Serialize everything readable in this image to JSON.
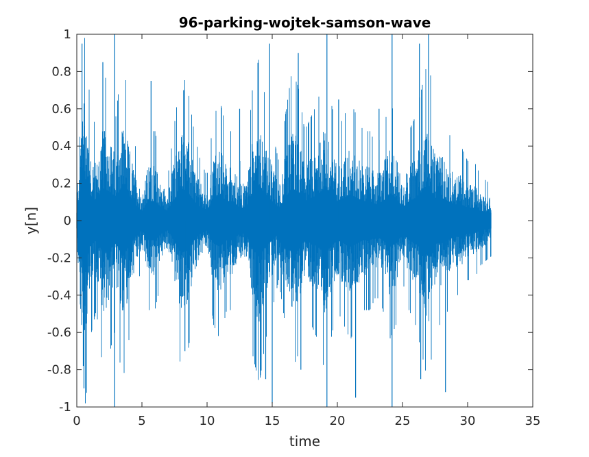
{
  "chart_data": {
    "type": "line",
    "title": "96-parking-wojtek-samson-wave",
    "xlabel": "time",
    "ylabel": "y[n]",
    "xlim": [
      0,
      35
    ],
    "ylim": [
      -1,
      1
    ],
    "x_ticks": [
      "0",
      "5",
      "10",
      "15",
      "20",
      "25",
      "30",
      "35"
    ],
    "y_ticks": [
      "1",
      "0.8",
      "0.6",
      "0.4",
      "0.2",
      "0",
      "-0.2",
      "-0.4",
      "-0.6",
      "-0.8",
      "-1"
    ],
    "grid": false,
    "box": true,
    "series": [
      {
        "color": "#0072BD",
        "x_start": 0,
        "x_end": 31.8,
        "envelope": [
          {
            "x": 0.0,
            "amp": 0.12
          },
          {
            "x": 0.3,
            "amp": 0.55
          },
          {
            "x": 0.6,
            "amp": 0.7
          },
          {
            "x": 1.0,
            "amp": 0.4
          },
          {
            "x": 1.5,
            "amp": 0.3
          },
          {
            "x": 2.0,
            "amp": 0.5
          },
          {
            "x": 2.5,
            "amp": 0.45
          },
          {
            "x": 3.0,
            "amp": 0.35
          },
          {
            "x": 3.5,
            "amp": 0.55
          },
          {
            "x": 4.0,
            "amp": 0.4
          },
          {
            "x": 4.5,
            "amp": 0.25
          },
          {
            "x": 5.0,
            "amp": 0.15
          },
          {
            "x": 5.5,
            "amp": 0.3
          },
          {
            "x": 6.0,
            "amp": 0.3
          },
          {
            "x": 6.5,
            "amp": 0.2
          },
          {
            "x": 7.0,
            "amp": 0.15
          },
          {
            "x": 8.0,
            "amp": 0.5
          },
          {
            "x": 8.5,
            "amp": 0.45
          },
          {
            "x": 9.0,
            "amp": 0.3
          },
          {
            "x": 9.5,
            "amp": 0.2
          },
          {
            "x": 10.0,
            "amp": 0.15
          },
          {
            "x": 10.5,
            "amp": 0.35
          },
          {
            "x": 11.0,
            "amp": 0.4
          },
          {
            "x": 11.5,
            "amp": 0.3
          },
          {
            "x": 12.0,
            "amp": 0.3
          },
          {
            "x": 12.5,
            "amp": 0.2
          },
          {
            "x": 13.0,
            "amp": 0.2
          },
          {
            "x": 13.5,
            "amp": 0.45
          },
          {
            "x": 14.0,
            "amp": 0.55
          },
          {
            "x": 14.5,
            "amp": 0.4
          },
          {
            "x": 15.0,
            "amp": 0.3
          },
          {
            "x": 15.5,
            "amp": 0.2
          },
          {
            "x": 16.0,
            "amp": 0.35
          },
          {
            "x": 16.5,
            "amp": 0.5
          },
          {
            "x": 17.0,
            "amp": 0.45
          },
          {
            "x": 17.5,
            "amp": 0.3
          },
          {
            "x": 18.0,
            "amp": 0.35
          },
          {
            "x": 18.5,
            "amp": 0.4
          },
          {
            "x": 19.0,
            "amp": 0.5
          },
          {
            "x": 19.5,
            "amp": 0.4
          },
          {
            "x": 20.0,
            "amp": 0.3
          },
          {
            "x": 20.5,
            "amp": 0.35
          },
          {
            "x": 21.0,
            "amp": 0.4
          },
          {
            "x": 21.5,
            "amp": 0.35
          },
          {
            "x": 22.0,
            "amp": 0.3
          },
          {
            "x": 22.5,
            "amp": 0.3
          },
          {
            "x": 23.0,
            "amp": 0.25
          },
          {
            "x": 23.5,
            "amp": 0.3
          },
          {
            "x": 24.0,
            "amp": 0.4
          },
          {
            "x": 24.5,
            "amp": 0.35
          },
          {
            "x": 25.0,
            "amp": 0.2
          },
          {
            "x": 25.5,
            "amp": 0.3
          },
          {
            "x": 26.0,
            "amp": 0.35
          },
          {
            "x": 26.5,
            "amp": 0.45
          },
          {
            "x": 27.0,
            "amp": 0.55
          },
          {
            "x": 27.5,
            "amp": 0.35
          },
          {
            "x": 28.0,
            "amp": 0.35
          },
          {
            "x": 28.5,
            "amp": 0.3
          },
          {
            "x": 29.0,
            "amp": 0.25
          },
          {
            "x": 29.5,
            "amp": 0.25
          },
          {
            "x": 30.0,
            "amp": 0.2
          },
          {
            "x": 30.5,
            "amp": 0.2
          },
          {
            "x": 31.0,
            "amp": 0.15
          },
          {
            "x": 31.8,
            "amp": 0.12
          }
        ],
        "peaks": [
          {
            "x": 0.4,
            "y": 0.95
          },
          {
            "x": 0.55,
            "y": -0.9
          },
          {
            "x": 0.5,
            "y": -0.78
          },
          {
            "x": 2.0,
            "y": 0.85
          },
          {
            "x": 2.9,
            "y": 1.0
          },
          {
            "x": 2.9,
            "y": -1.0
          },
          {
            "x": 5.7,
            "y": 0.75
          },
          {
            "x": 8.2,
            "y": 0.7
          },
          {
            "x": 8.3,
            "y": -0.7
          },
          {
            "x": 12.5,
            "y": 0.6
          },
          {
            "x": 14.5,
            "y": -0.85
          },
          {
            "x": 14.8,
            "y": 0.95
          },
          {
            "x": 15.0,
            "y": -0.98
          },
          {
            "x": 17.0,
            "y": 0.9
          },
          {
            "x": 17.2,
            "y": -0.8
          },
          {
            "x": 19.2,
            "y": 1.0
          },
          {
            "x": 19.2,
            "y": -1.0
          },
          {
            "x": 20.1,
            "y": 0.65
          },
          {
            "x": 21.4,
            "y": -0.95
          },
          {
            "x": 23.2,
            "y": 0.6
          },
          {
            "x": 24.2,
            "y": 1.0
          },
          {
            "x": 24.2,
            "y": -1.0
          },
          {
            "x": 26.3,
            "y": 0.95
          },
          {
            "x": 26.4,
            "y": -0.85
          },
          {
            "x": 27.0,
            "y": 1.0
          },
          {
            "x": 28.3,
            "y": -0.92
          }
        ]
      }
    ]
  }
}
